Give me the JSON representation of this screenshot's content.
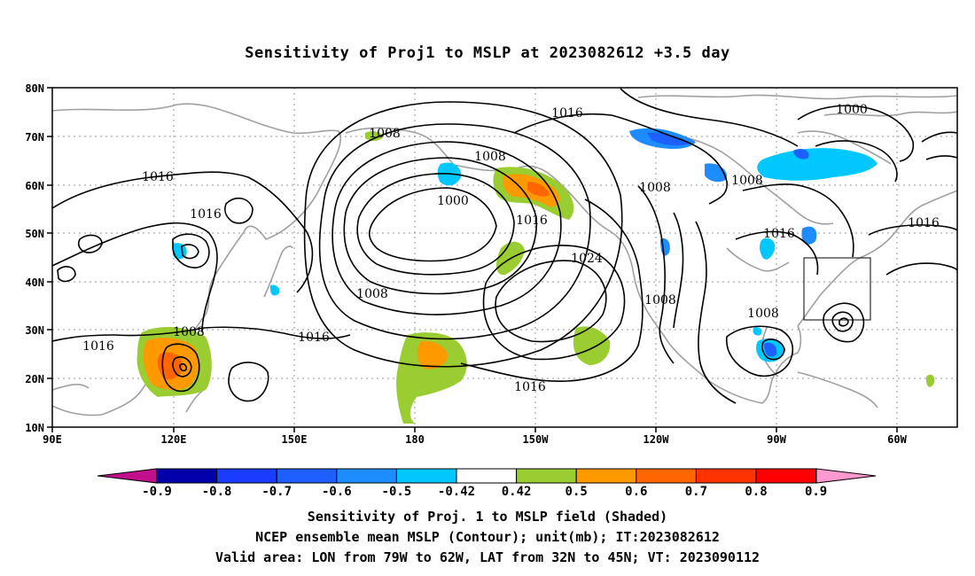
{
  "title": "Sensitivity of Proj1 to MSLP at 2023082612 +3.5 day",
  "map": {
    "lon_range": [
      "90E",
      "45W"
    ],
    "lat_range": [
      "10N",
      "80N"
    ],
    "lat_labels": [
      "80N",
      "70N",
      "60N",
      "50N",
      "40N",
      "30N",
      "20N",
      "10N"
    ],
    "lon_labels": [
      "90E",
      "120E",
      "150E",
      "180",
      "150W",
      "120W",
      "90W",
      "60W"
    ],
    "contour_labels": [
      "1008",
      "1016",
      "1000",
      "1008",
      "1008",
      "1016",
      "1016",
      "1000",
      "1016",
      "1008",
      "1016",
      "1024",
      "1008",
      "1016",
      "1008",
      "1008",
      "1016",
      "1016",
      "1016"
    ],
    "valid_box": {
      "lon": [
        "79W",
        "62W"
      ],
      "lat": [
        "32N",
        "45N"
      ]
    },
    "colors": {
      "land": "#a0a0a0",
      "contour": "#000000",
      "grid": "#9a9a9a"
    }
  },
  "colorbar": {
    "labels": [
      "-0.9",
      "-0.8",
      "-0.7",
      "-0.6",
      "-0.5",
      "-0.42",
      "0.42",
      "0.5",
      "0.6",
      "0.7",
      "0.8",
      "0.9"
    ],
    "colors": [
      "#0000aa",
      "#1a3cff",
      "#1e60ff",
      "#1c8cff",
      "#00c8ff",
      "#ffffff",
      "#9acd32",
      "#ff9900",
      "#ff6600",
      "#ff3300",
      "#ff0000"
    ],
    "left_end_color": "#c0108c",
    "right_end_color": "#ff9ad0"
  },
  "captions": [
    "Sensitivity of Proj. 1 to MSLP field (Shaded)",
    "NCEP ensemble mean MSLP (Contour); unit(mb); IT:2023082612",
    "Valid area: LON from 79W to 62W, LAT from 32N to 45N; VT: 2023090112"
  ]
}
